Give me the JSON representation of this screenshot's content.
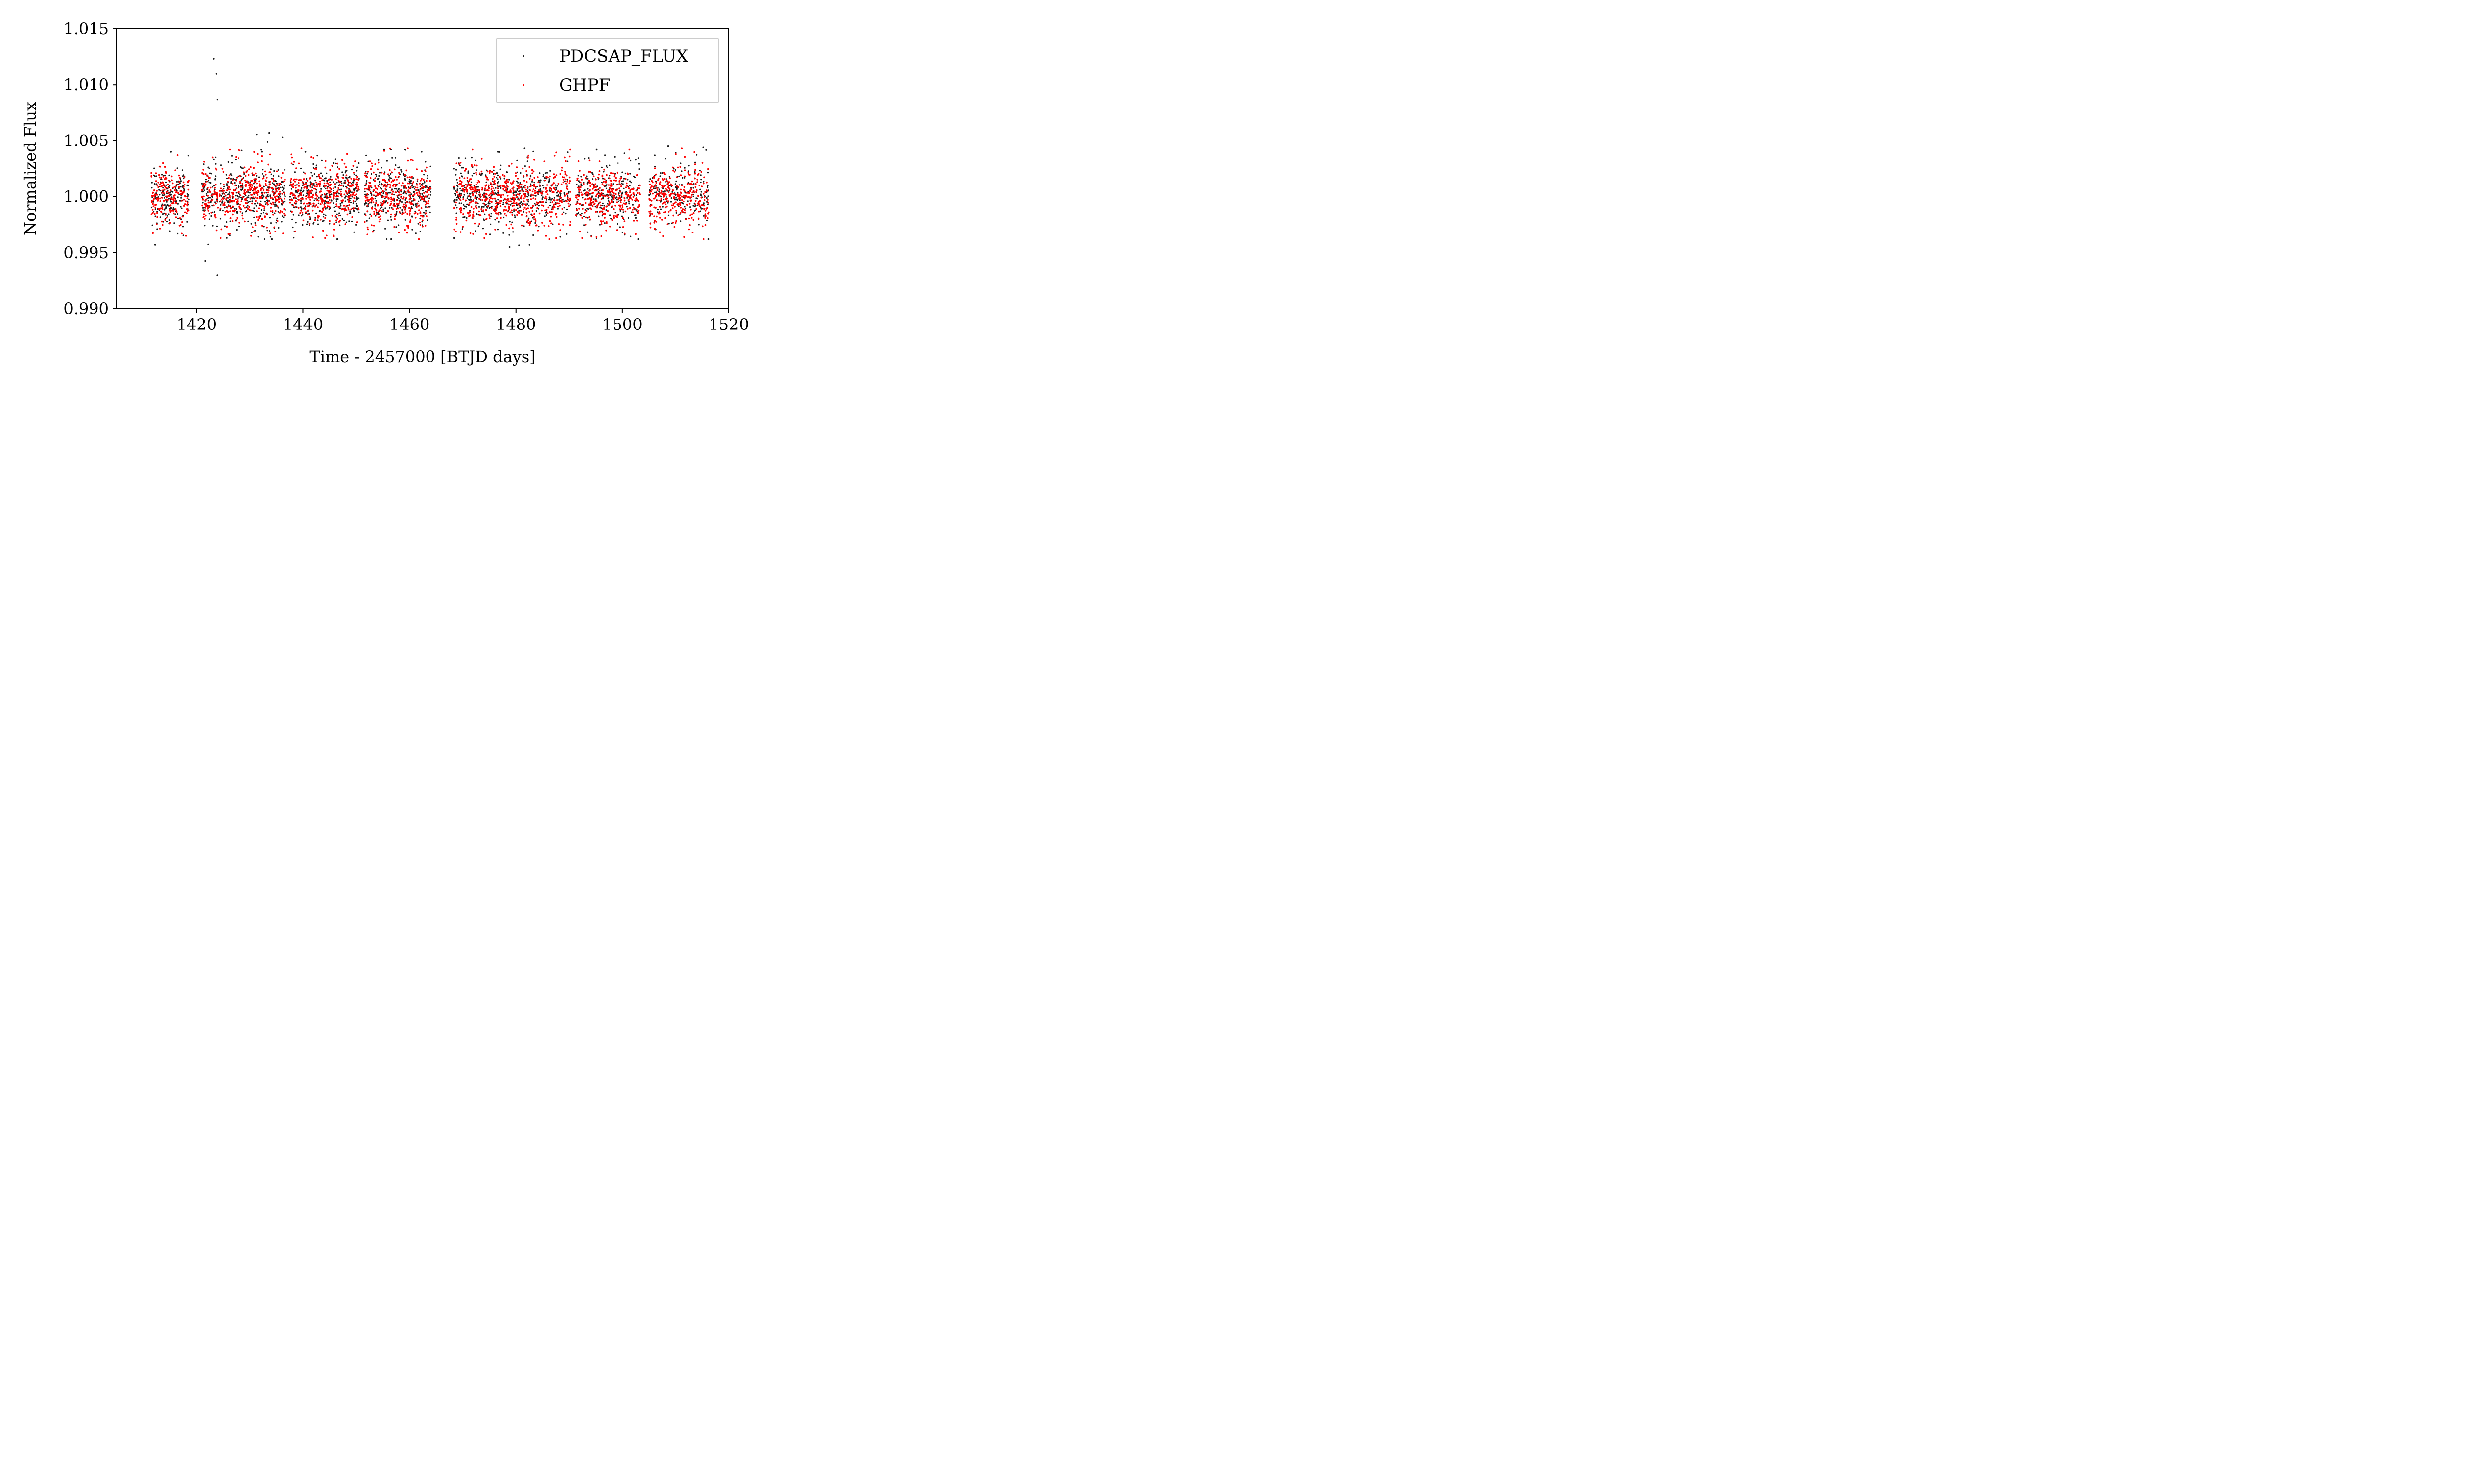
{
  "chart_data": {
    "type": "scatter",
    "title": "",
    "xlabel": "Time - 2457000 [BTJD days]",
    "ylabel": "Normalized Flux",
    "xlim": [
      1405,
      1520
    ],
    "ylim": [
      0.99,
      1.015
    ],
    "x_ticks": [
      1420,
      1440,
      1460,
      1480,
      1500,
      1520
    ],
    "y_ticks": [
      0.99,
      0.995,
      1.0,
      1.005,
      1.01,
      1.015
    ],
    "x_tick_labels": [
      "1420",
      "1440",
      "1460",
      "1480",
      "1500",
      "1520"
    ],
    "y_tick_labels": [
      "0.990",
      "0.995",
      "1.000",
      "1.005",
      "1.010",
      "1.015"
    ],
    "grid": false,
    "legend_position": "top-right",
    "series": [
      {
        "name": "PDCSAP_FLUX",
        "color": "#1a1a1a",
        "segments": [
          {
            "x_start": 1411.5,
            "x_end": 1418.5,
            "y_low": 0.9957,
            "y_high": 1.004
          },
          {
            "x_start": 1421.0,
            "x_end": 1424.0,
            "y_low": 0.993,
            "y_high": 1.0123
          },
          {
            "x_start": 1424.3,
            "x_end": 1436.7,
            "y_low": 0.9962,
            "y_high": 1.0057
          },
          {
            "x_start": 1437.5,
            "x_end": 1450.5,
            "y_low": 0.9962,
            "y_high": 1.004
          },
          {
            "x_start": 1451.5,
            "x_end": 1464.0,
            "y_low": 0.9962,
            "y_high": 1.0042
          },
          {
            "x_start": 1468.3,
            "x_end": 1477.2,
            "y_low": 0.9963,
            "y_high": 1.004
          },
          {
            "x_start": 1477.5,
            "x_end": 1490.3,
            "y_low": 0.9955,
            "y_high": 1.0043
          },
          {
            "x_start": 1491.3,
            "x_end": 1503.3,
            "y_low": 0.9962,
            "y_high": 1.0042
          },
          {
            "x_start": 1505.0,
            "x_end": 1516.2,
            "y_low": 0.9962,
            "y_high": 1.0045
          }
        ]
      },
      {
        "name": "GHPF",
        "color": "#ff0000",
        "segments": [
          {
            "x_start": 1411.5,
            "x_end": 1418.5,
            "y_low": 0.9965,
            "y_high": 1.0037
          },
          {
            "x_start": 1421.0,
            "x_end": 1424.0,
            "y_low": 0.997,
            "y_high": 1.0035
          },
          {
            "x_start": 1424.3,
            "x_end": 1436.7,
            "y_low": 0.9963,
            "y_high": 1.0042
          },
          {
            "x_start": 1437.5,
            "x_end": 1450.5,
            "y_low": 0.9963,
            "y_high": 1.0043
          },
          {
            "x_start": 1451.5,
            "x_end": 1464.0,
            "y_low": 0.9962,
            "y_high": 1.0043
          },
          {
            "x_start": 1468.3,
            "x_end": 1477.2,
            "y_low": 0.9963,
            "y_high": 1.0042
          },
          {
            "x_start": 1477.5,
            "x_end": 1490.3,
            "y_low": 0.9962,
            "y_high": 1.0042
          },
          {
            "x_start": 1491.3,
            "x_end": 1503.3,
            "y_low": 0.9963,
            "y_high": 1.0042
          },
          {
            "x_start": 1505.0,
            "x_end": 1516.2,
            "y_low": 0.9962,
            "y_high": 1.0043
          }
        ]
      }
    ]
  }
}
